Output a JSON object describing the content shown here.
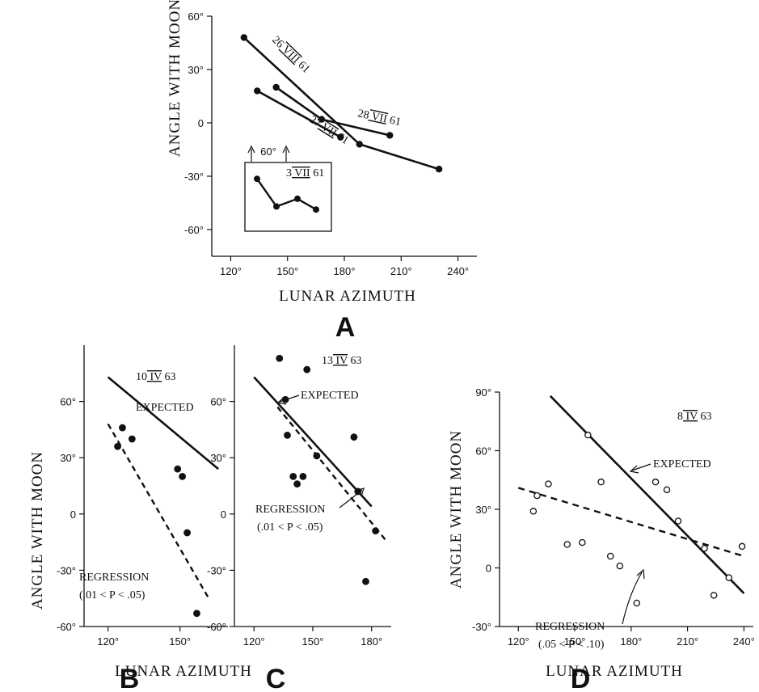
{
  "chart_data": [
    {
      "panel": "A",
      "type": "line",
      "panel_letter": "A",
      "xlabel": "LUNAR AZIMUTH",
      "ylabel": "ANGLE WITH MOON",
      "xlim": [
        110,
        250
      ],
      "ylim": [
        -75,
        60
      ],
      "xticks": [
        "120°",
        "150°",
        "180°",
        "210°",
        "240°"
      ],
      "xtick_values": [
        120,
        150,
        180,
        210,
        240
      ],
      "yticks": [
        "60°",
        "30°",
        "0",
        "-30°",
        "-60°"
      ],
      "ytick_values": [
        60,
        30,
        0,
        -30,
        -60
      ],
      "series": [
        {
          "name": "26 VIII 61",
          "points": [
            [
              127,
              48
            ],
            [
              188,
              -12
            ],
            [
              230,
              -26
            ]
          ]
        },
        {
          "name": "27 VII 61",
          "points": [
            [
              134,
              18
            ],
            [
              178,
              -8
            ]
          ]
        },
        {
          "name": "28 VII 61",
          "points": [
            [
              144,
              20
            ],
            [
              168,
              2
            ],
            [
              204,
              -7
            ]
          ]
        }
      ],
      "inset": {
        "label": "3 VII 61",
        "marker_label": "60°",
        "y_values": [
          -28,
          -46,
          -41,
          -48
        ]
      }
    },
    {
      "panel": "B",
      "type": "scatter",
      "panel_letter": "B",
      "date_label": "10 IV 63",
      "xlim": [
        110,
        170
      ],
      "ylim": [
        -60,
        90
      ],
      "xticks": [
        "120°",
        "150°"
      ],
      "xtick_values": [
        120,
        150
      ],
      "yticks": [
        "60°",
        "30°",
        "0",
        "-30°",
        "-60°"
      ],
      "ytick_values": [
        60,
        30,
        0,
        -30,
        -60
      ],
      "points": [
        [
          124,
          36
        ],
        [
          126,
          46
        ],
        [
          130,
          40
        ],
        [
          149,
          24
        ],
        [
          151,
          20
        ],
        [
          153,
          -10
        ],
        [
          157,
          -53
        ]
      ],
      "expected_line": [
        [
          120,
          73
        ],
        [
          166,
          24
        ]
      ],
      "regression_line": [
        [
          120,
          48
        ],
        [
          162,
          -45
        ]
      ],
      "expected_label": "EXPECTED",
      "regression_label": "REGRESSION",
      "p_label": "(.01 < P < .05)"
    },
    {
      "panel": "C",
      "type": "scatter",
      "panel_letter": "C",
      "date_label": "13 IV 63",
      "xlim": [
        110,
        190
      ],
      "ylim": [
        -60,
        90
      ],
      "xticks": [
        "120°",
        "150°",
        "180°"
      ],
      "xtick_values": [
        120,
        150,
        180
      ],
      "yticks": [
        "60°",
        "30°",
        "0",
        "-30°",
        "-60°"
      ],
      "ytick_values": [
        60,
        30,
        0,
        -30,
        -60
      ],
      "points": [
        [
          133,
          83
        ],
        [
          147,
          77
        ],
        [
          136,
          61
        ],
        [
          137,
          42
        ],
        [
          140,
          20
        ],
        [
          142,
          16
        ],
        [
          145,
          20
        ],
        [
          152,
          31
        ],
        [
          171,
          41
        ],
        [
          173,
          12
        ],
        [
          182,
          -9
        ],
        [
          177,
          -36
        ]
      ],
      "expected_line": [
        [
          120,
          73
        ],
        [
          180,
          4
        ]
      ],
      "regression_line": [
        [
          132,
          57
        ],
        [
          188,
          -15
        ]
      ],
      "expected_label": "EXPECTED",
      "regression_label": "REGRESSION",
      "p_label": "(.01 < P < .05)"
    },
    {
      "panel": "D",
      "type": "scatter",
      "panel_letter": "D",
      "date_label": "8 IV 63",
      "xlabel": "LUNAR AZIMUTH",
      "xlim": [
        110,
        245
      ],
      "ylim": [
        -30,
        90
      ],
      "xticks": [
        "120°",
        "150°",
        "180°",
        "210°",
        "240°"
      ],
      "xtick_values": [
        120,
        150,
        180,
        210,
        240
      ],
      "yticks": [
        "90°",
        "60°",
        "30°",
        "0",
        "-30°"
      ],
      "ytick_values": [
        90,
        60,
        30,
        0,
        -30
      ],
      "points": [
        [
          128,
          29
        ],
        [
          130,
          37
        ],
        [
          136,
          43
        ],
        [
          146,
          12
        ],
        [
          154,
          13
        ],
        [
          157,
          68
        ],
        [
          164,
          44
        ],
        [
          169,
          6
        ],
        [
          174,
          1
        ],
        [
          183,
          -18
        ],
        [
          193,
          44
        ],
        [
          199,
          40
        ],
        [
          205,
          24
        ],
        [
          219,
          10
        ],
        [
          224,
          -14
        ],
        [
          232,
          -5
        ],
        [
          239,
          11
        ]
      ],
      "expected_line": [
        [
          137,
          88
        ],
        [
          240,
          -13
        ]
      ],
      "regression_line": [
        [
          120,
          41
        ],
        [
          240,
          6
        ]
      ],
      "expected_label": "EXPECTED",
      "regression_label": "REGRESSION",
      "p_label": "(.05 < P < .10)"
    }
  ],
  "shared": {
    "bc_xlabel": "LUNAR AZIMUTH",
    "bc_ylabel": "ANGLE WITH MOON"
  }
}
